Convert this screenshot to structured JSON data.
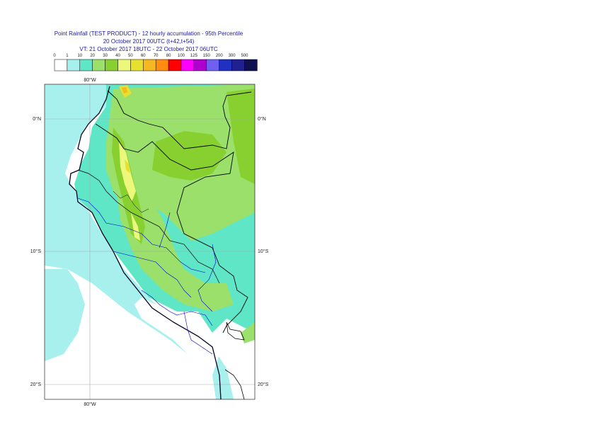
{
  "header": {
    "line1": "Point Rainfall (TEST PRODUCT) - 12 hourly accumulation - 95th Percentile",
    "line2": "20 October 2017 00UTC (t+42,t+54)",
    "line3": "VT: 21 October 2017 18UTC - 22 October 2017 06UTC"
  },
  "legend": {
    "thresholds": [
      "0",
      "1",
      "10",
      "20",
      "30",
      "40",
      "50",
      "60",
      "70",
      "80",
      "100",
      "125",
      "150",
      "200",
      "300",
      "500"
    ],
    "colors": [
      "#ffffff",
      "#a8f0ee",
      "#5ee6c6",
      "#9ae06a",
      "#88d030",
      "#ecf87c",
      "#e8e030",
      "#f4b820",
      "#ff8c10",
      "#ff0000",
      "#ff00ff",
      "#b000d0",
      "#7060f0",
      "#2030c0",
      "#202090",
      "#101050"
    ]
  },
  "map": {
    "lat_labels": [
      "0°N",
      "10°S",
      "20°S"
    ],
    "lon_label": "80°W",
    "colors": {
      "ocean": "#ffffff",
      "land_light": "#9ae06a",
      "land_mid": "#88d030",
      "coast_rain": "#5ee6c6",
      "ocean_rain": "#a8f0ee",
      "heavy": "#ecf87c",
      "heavier": "#e8e030",
      "extreme": "#f4b820",
      "country_border": "#000000",
      "region_border": "#0000cc",
      "grid": "#aaaaaa"
    }
  }
}
